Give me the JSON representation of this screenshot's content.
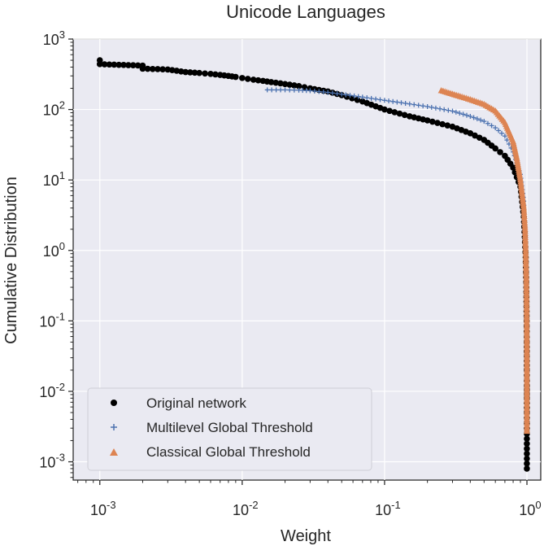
{
  "chart_data": {
    "type": "scatter",
    "title": "Unicode Languages",
    "xlabel": "Weight",
    "ylabel": "Cumulative Distribution",
    "xscale": "log",
    "yscale": "log",
    "xlim": [
      0.00065,
      1.25
    ],
    "ylim": [
      0.00055,
      1000
    ],
    "grid": true,
    "legend_position": "lower-left",
    "x_ticks": [
      {
        "value": 0.001,
        "base": "10",
        "exp": "-3"
      },
      {
        "value": 0.01,
        "base": "10",
        "exp": "-2"
      },
      {
        "value": 0.1,
        "base": "10",
        "exp": "-1"
      },
      {
        "value": 1,
        "base": "10",
        "exp": "0"
      }
    ],
    "y_ticks": [
      {
        "value": 0.001,
        "base": "10",
        "exp": "-3"
      },
      {
        "value": 0.01,
        "base": "10",
        "exp": "-2"
      },
      {
        "value": 0.1,
        "base": "10",
        "exp": "-1"
      },
      {
        "value": 1,
        "base": "10",
        "exp": "0"
      },
      {
        "value": 10,
        "base": "10",
        "exp": "1"
      },
      {
        "value": 100,
        "base": "10",
        "exp": "2"
      },
      {
        "value": 1000,
        "base": "10",
        "exp": "3"
      }
    ],
    "series": [
      {
        "name": "Original network",
        "marker": "circle",
        "color": "#000000",
        "points": [
          [
            0.001,
            500
          ],
          [
            0.001,
            440
          ],
          [
            0.002,
            420
          ],
          [
            0.002,
            380
          ],
          [
            0.003,
            370
          ],
          [
            0.004,
            340
          ],
          [
            0.005,
            330
          ],
          [
            0.006,
            320
          ],
          [
            0.007,
            310
          ],
          [
            0.008,
            300
          ],
          [
            0.009,
            290
          ],
          [
            0.01,
            280
          ],
          [
            0.012,
            265
          ],
          [
            0.014,
            255
          ],
          [
            0.016,
            245
          ],
          [
            0.02,
            230
          ],
          [
            0.025,
            215
          ],
          [
            0.03,
            200
          ],
          [
            0.04,
            180
          ],
          [
            0.05,
            160
          ],
          [
            0.07,
            130
          ],
          [
            0.1,
            100
          ],
          [
            0.15,
            80
          ],
          [
            0.2,
            70
          ],
          [
            0.3,
            57
          ],
          [
            0.4,
            46
          ],
          [
            0.5,
            37
          ],
          [
            0.6,
            28
          ],
          [
            0.7,
            22
          ],
          [
            0.8,
            15
          ],
          [
            0.9,
            8
          ],
          [
            0.95,
            3
          ],
          [
            0.98,
            0.8
          ],
          [
            0.99,
            0.3
          ],
          [
            0.995,
            0.1
          ],
          [
            0.997,
            0.05
          ],
          [
            0.998,
            0.02
          ],
          [
            0.999,
            0.012
          ],
          [
            0.999,
            0.008
          ],
          [
            0.999,
            0.005
          ],
          [
            0.999,
            0.0025
          ],
          [
            0.999,
            0.0008
          ]
        ]
      },
      {
        "name": "Multilevel Global Threshold",
        "marker": "plus",
        "color": "#4c72b0",
        "points": [
          [
            0.015,
            190
          ],
          [
            0.02,
            190
          ],
          [
            0.025,
            188
          ],
          [
            0.03,
            185
          ],
          [
            0.04,
            175
          ],
          [
            0.05,
            165
          ],
          [
            0.07,
            150
          ],
          [
            0.1,
            135
          ],
          [
            0.15,
            120
          ],
          [
            0.2,
            110
          ],
          [
            0.3,
            95
          ],
          [
            0.4,
            80
          ],
          [
            0.5,
            68
          ],
          [
            0.6,
            55
          ],
          [
            0.7,
            42
          ],
          [
            0.8,
            25
          ],
          [
            0.9,
            12
          ],
          [
            0.95,
            5
          ],
          [
            0.98,
            1
          ],
          [
            0.99,
            0.3
          ],
          [
            0.995,
            0.1
          ],
          [
            0.998,
            0.03
          ],
          [
            0.999,
            0.01
          ]
        ]
      },
      {
        "name": "Classical Global Threshold",
        "marker": "triangle",
        "color": "#dd8452",
        "points": [
          [
            0.25,
            185
          ],
          [
            0.3,
            165
          ],
          [
            0.35,
            150
          ],
          [
            0.4,
            138
          ],
          [
            0.5,
            118
          ],
          [
            0.6,
            95
          ],
          [
            0.7,
            65
          ],
          [
            0.8,
            35
          ],
          [
            0.85,
            20
          ],
          [
            0.9,
            10
          ],
          [
            0.95,
            4
          ],
          [
            0.97,
            2
          ],
          [
            0.98,
            1
          ],
          [
            0.99,
            0.4
          ],
          [
            0.995,
            0.15
          ],
          [
            0.998,
            0.05
          ],
          [
            0.999,
            0.02
          ],
          [
            0.999,
            0.008
          ],
          [
            0.999,
            0.0027
          ]
        ]
      }
    ]
  }
}
